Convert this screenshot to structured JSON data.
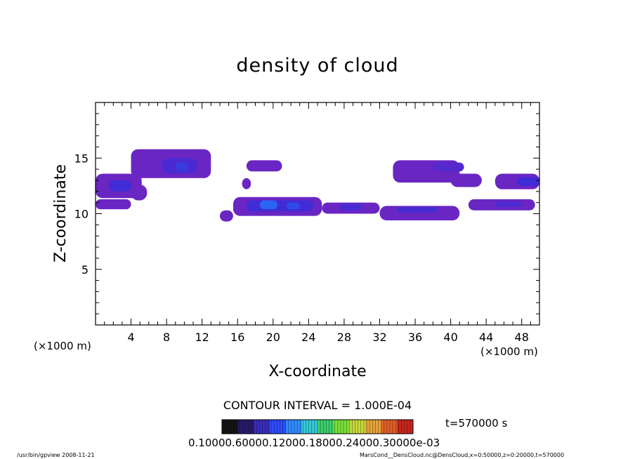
{
  "chart_data": {
    "type": "heatmap",
    "title": "density of cloud",
    "xlabel": "X-coordinate",
    "ylabel": "Z-coordinate",
    "x_unit_label": "(×1000 m)",
    "z_unit_label": "(×1000 m)",
    "xlim": [
      0,
      50
    ],
    "ylim": [
      0,
      20
    ],
    "x_ticks": [
      4,
      8,
      12,
      16,
      20,
      24,
      28,
      32,
      36,
      40,
      44,
      48
    ],
    "y_ticks": [
      5,
      10,
      15
    ],
    "contour_interval_label": "CONTOUR INTERVAL = 1.000E-04",
    "time_label": "t=570000  s",
    "colorbar_label": "0.10000.60000.12000.18000.24000.30000e-03",
    "colorbar_colors": [
      "#141414",
      "#2a1a6a",
      "#3a2dbb",
      "#2f4bff",
      "#2f8cff",
      "#35c9d8",
      "#3ccf6a",
      "#7adf3a",
      "#c8d83a",
      "#e6a33a",
      "#e0602a",
      "#c8261e"
    ],
    "cloud_regions": [
      {
        "x0": 0.0,
        "x1": 5.2,
        "z0": 11.4,
        "z1": 13.6,
        "level": 0.3
      },
      {
        "x0": 1.5,
        "x1": 4.0,
        "z0": 12.0,
        "z1": 13.0,
        "level": 0.55
      },
      {
        "x0": 0.0,
        "x1": 4.0,
        "z0": 10.4,
        "z1": 11.3,
        "level": 0.3
      },
      {
        "x0": 4.0,
        "x1": 5.8,
        "z0": 11.2,
        "z1": 12.6,
        "level": 0.28
      },
      {
        "x0": 4.0,
        "x1": 13.0,
        "z0": 13.2,
        "z1": 15.8,
        "level": 0.3
      },
      {
        "x0": 7.5,
        "x1": 11.5,
        "z0": 13.6,
        "z1": 15.0,
        "level": 0.5
      },
      {
        "x0": 9.0,
        "x1": 10.4,
        "z0": 13.9,
        "z1": 14.6,
        "level": 0.62
      },
      {
        "x0": 14.0,
        "x1": 15.5,
        "z0": 9.3,
        "z1": 10.3,
        "level": 0.3
      },
      {
        "x0": 15.5,
        "x1": 25.5,
        "z0": 9.8,
        "z1": 11.5,
        "level": 0.32
      },
      {
        "x0": 17.0,
        "x1": 24.5,
        "z0": 10.2,
        "z1": 11.2,
        "level": 0.55
      },
      {
        "x0": 18.5,
        "x1": 20.5,
        "z0": 10.4,
        "z1": 11.2,
        "level": 0.78
      },
      {
        "x0": 21.5,
        "x1": 23.0,
        "z0": 10.4,
        "z1": 11.0,
        "level": 0.68
      },
      {
        "x0": 17.0,
        "x1": 21.0,
        "z0": 13.8,
        "z1": 14.8,
        "level": 0.3
      },
      {
        "x0": 16.5,
        "x1": 17.5,
        "z0": 12.2,
        "z1": 13.2,
        "level": 0.28
      },
      {
        "x0": 25.5,
        "x1": 32.0,
        "z0": 10.0,
        "z1": 11.0,
        "level": 0.32
      },
      {
        "x0": 27.5,
        "x1": 30.0,
        "z0": 10.3,
        "z1": 10.9,
        "level": 0.5
      },
      {
        "x0": 32.0,
        "x1": 41.0,
        "z0": 9.4,
        "z1": 10.7,
        "level": 0.32
      },
      {
        "x0": 34.0,
        "x1": 38.5,
        "z0": 10.1,
        "z1": 10.6,
        "level": 0.52
      },
      {
        "x0": 33.5,
        "x1": 41.0,
        "z0": 12.8,
        "z1": 14.8,
        "level": 0.3
      },
      {
        "x0": 38.0,
        "x1": 41.5,
        "z0": 13.8,
        "z1": 14.6,
        "level": 0.45
      },
      {
        "x0": 40.0,
        "x1": 43.5,
        "z0": 12.4,
        "z1": 13.6,
        "level": 0.3
      },
      {
        "x0": 45.0,
        "x1": 50.0,
        "z0": 12.2,
        "z1": 13.6,
        "level": 0.32
      },
      {
        "x0": 47.5,
        "x1": 50.0,
        "z0": 12.5,
        "z1": 13.3,
        "level": 0.55
      },
      {
        "x0": 42.0,
        "x1": 49.5,
        "z0": 10.3,
        "z1": 11.3,
        "level": 0.3
      },
      {
        "x0": 45.0,
        "x1": 48.0,
        "z0": 10.6,
        "z1": 11.1,
        "level": 0.48
      }
    ]
  },
  "footer": {
    "left": "/usr/bin/gpview   2008-11-21",
    "right": "MarsCond__DensCloud.nc@DensCloud,x=0:50000,z=0:20000,t=570000"
  }
}
